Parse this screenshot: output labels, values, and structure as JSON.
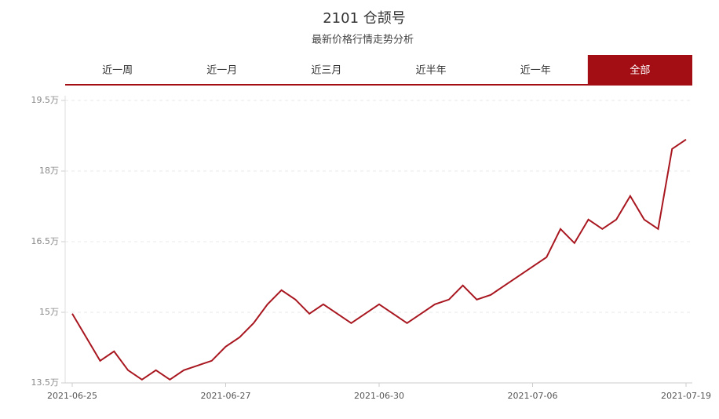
{
  "header": {
    "title": "2101 仓颉号",
    "subtitle": "最新价格行情走势分析"
  },
  "tabs": [
    "近一周",
    "近一月",
    "近三月",
    "近半年",
    "近一年",
    "全部"
  ],
  "active_tab": 5,
  "chart_data": {
    "type": "line",
    "color": "#a8161f",
    "categories": [
      "2021-06-25",
      null,
      null,
      null,
      null,
      null,
      null,
      null,
      null,
      null,
      null,
      "2021-06-27",
      null,
      null,
      null,
      null,
      null,
      null,
      null,
      null,
      null,
      null,
      "2021-06-30",
      null,
      null,
      null,
      null,
      null,
      null,
      null,
      null,
      null,
      null,
      "2021-07-06",
      null,
      null,
      null,
      null,
      null,
      null,
      null,
      null,
      null,
      null,
      "2021-07-19"
    ],
    "values": [
      14.97,
      14.47,
      13.97,
      14.17,
      13.77,
      13.57,
      13.77,
      13.57,
      13.77,
      13.87,
      13.97,
      14.27,
      14.47,
      14.77,
      15.17,
      15.47,
      15.27,
      14.97,
      15.17,
      14.97,
      14.77,
      14.97,
      15.17,
      14.97,
      14.77,
      14.97,
      15.17,
      15.27,
      15.57,
      15.27,
      15.37,
      15.57,
      15.77,
      15.97,
      16.17,
      16.77,
      16.47,
      16.97,
      16.77,
      16.97,
      17.47,
      16.97,
      16.77,
      18.47,
      18.67
    ],
    "ylim": [
      13.5,
      19.5
    ],
    "yticks": [
      {
        "value": 13.5,
        "label": "13.5万"
      },
      {
        "value": 15,
        "label": "15万"
      },
      {
        "value": 16.5,
        "label": "16.5万"
      },
      {
        "value": 18,
        "label": "18万"
      },
      {
        "value": 19.5,
        "label": "19.5万"
      }
    ],
    "grid": true
  }
}
